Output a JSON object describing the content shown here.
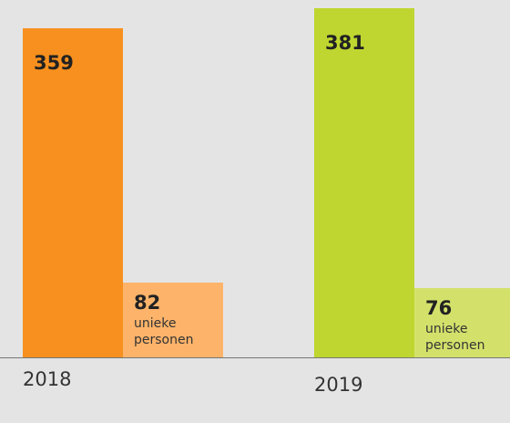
{
  "chart_data": {
    "type": "bar",
    "categories": [
      "2018",
      "2019"
    ],
    "series": [
      {
        "colors": [
          "#f7901e",
          "#bfd630"
        ],
        "values": [
          359,
          381
        ]
      },
      {
        "name": "unieke personen",
        "colors": [
          "#fdb46a",
          "#d3e16b"
        ],
        "values": [
          82,
          76
        ]
      }
    ]
  }
}
